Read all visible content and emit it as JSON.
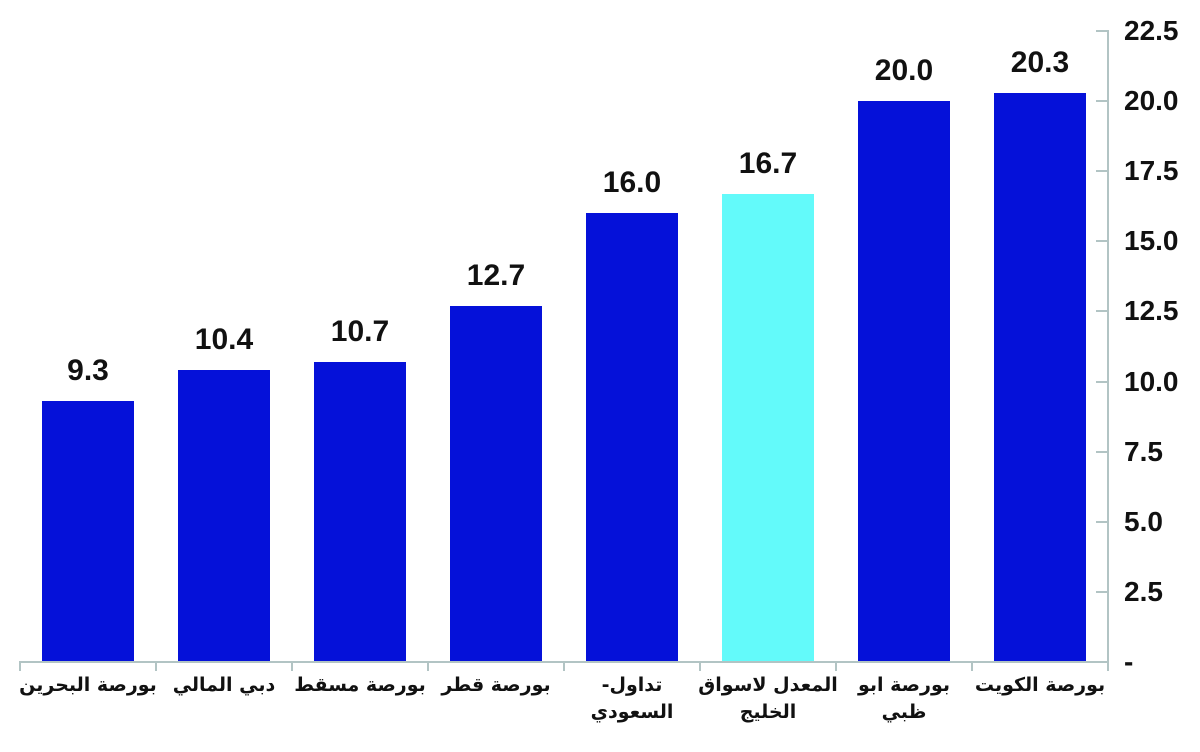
{
  "chart_data": {
    "type": "bar",
    "title": "",
    "categories": [
      "بورصة البحرين",
      "دبي المالي",
      "بورصة مسقط",
      "بورصة قطر",
      "تداول- السعودي",
      "المعدل لاسواق الخليج",
      "بورصة ابو ظبي",
      "بورصة الكويت"
    ],
    "values": [
      9.3,
      10.4,
      10.7,
      12.7,
      16.0,
      16.7,
      20.0,
      20.3
    ],
    "value_labels": [
      "9.3",
      "10.4",
      "10.7",
      "12.7",
      "16.0",
      "16.7",
      "20.0",
      "20.3"
    ],
    "highlight_index": 5,
    "bar_color": "#0511d9",
    "highlight_color": "#63fafa",
    "axis_color": "#b2c4c4",
    "text_color": "#111111",
    "ylim": [
      0,
      22.5
    ],
    "ytick_step": 2.5,
    "ytick_labels": [
      "-",
      "2.5",
      "5.0",
      "7.5",
      "10.0",
      "12.5",
      "15.0",
      "17.5",
      "20.0",
      "22.5"
    ],
    "yaxis_side": "right",
    "xlabel": "",
    "ylabel": "",
    "grid": false,
    "legend": null
  }
}
